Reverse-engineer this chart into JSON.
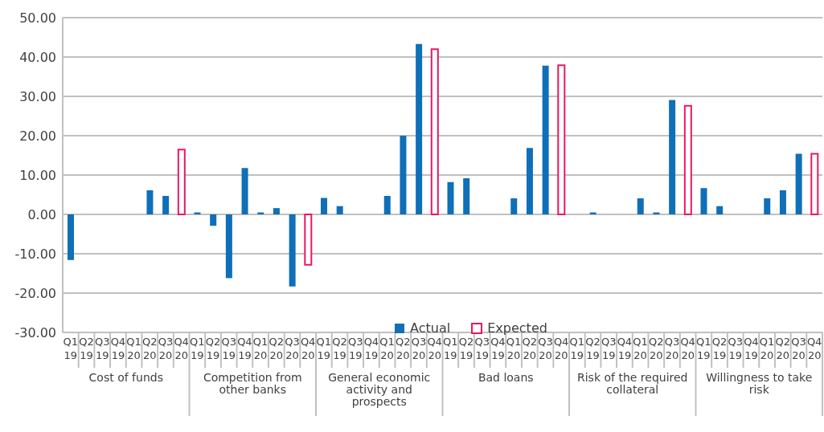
{
  "chart_data": {
    "type": "bar",
    "categories": [
      "Q1 19",
      "Q2 19",
      "Q3 19",
      "Q4 19",
      "Q1 20",
      "Q2 20",
      "Q3 20",
      "Q4 20",
      "Q1 19",
      "Q2 19",
      "Q3 19",
      "Q4 19",
      "Q1 20",
      "Q2 20",
      "Q3 20",
      "Q4 20",
      "Q1 19",
      "Q2 19",
      "Q3 19",
      "Q4 19",
      "Q1 20",
      "Q2 20",
      "Q3 20",
      "Q4 20",
      "Q1 19",
      "Q2 19",
      "Q3 19",
      "Q4 19",
      "Q1 20",
      "Q2 20",
      "Q3 20",
      "Q4 20",
      "Q1 19",
      "Q2 19",
      "Q3 19",
      "Q4 19",
      "Q1 20",
      "Q2 20",
      "Q3 20",
      "Q4 20",
      "Q1 19",
      "Q2 19",
      "Q3 19",
      "Q4 19",
      "Q1 20",
      "Q2 20",
      "Q3 20",
      "Q4 20"
    ],
    "series": [
      {
        "name": "Actual",
        "color": "#0f6fb8",
        "values": [
          -11.6,
          0,
          0,
          0,
          0,
          6.1,
          4.7,
          null,
          0.5,
          -2.9,
          -16.2,
          11.8,
          0.5,
          1.6,
          -18.3,
          null,
          4.2,
          2.1,
          0,
          0,
          4.7,
          20.0,
          43.3,
          null,
          8.2,
          9.2,
          0,
          0,
          4.1,
          16.9,
          37.8,
          null,
          0,
          0.5,
          0,
          0,
          4.1,
          0.5,
          29.1,
          null,
          6.7,
          2.1,
          0,
          0,
          4.1,
          6.1,
          15.4,
          null
        ]
      },
      {
        "name": "Expected",
        "color": "#e8185f",
        "values": [
          null,
          null,
          null,
          null,
          null,
          null,
          null,
          16.5,
          null,
          null,
          null,
          null,
          null,
          null,
          null,
          -12.8,
          null,
          null,
          null,
          null,
          null,
          null,
          null,
          42.0,
          null,
          null,
          null,
          null,
          null,
          null,
          null,
          37.9,
          null,
          null,
          null,
          null,
          null,
          null,
          null,
          27.6,
          null,
          null,
          null,
          null,
          null,
          null,
          null,
          15.4
        ]
      }
    ],
    "ylim": [
      -30,
      50
    ],
    "yticks": [
      {
        "value": -30,
        "label": "-30.00"
      },
      {
        "value": -20,
        "label": "-20.00"
      },
      {
        "value": -10,
        "label": "-10.00"
      },
      {
        "value": 0,
        "label": "0.00"
      },
      {
        "value": 10,
        "label": "10.00"
      },
      {
        "value": 20,
        "label": "20.00"
      },
      {
        "value": 30,
        "label": "30.00"
      },
      {
        "value": 40,
        "label": "40.00"
      },
      {
        "value": 50,
        "label": "50.00"
      }
    ],
    "grid": "y",
    "legend": "bottom",
    "annotations": [
      "Cost of funds",
      "Competition from other banks",
      "General economic activity and prospects",
      "Bad loans",
      "Risk of the required collateral",
      "Willingness to take risk"
    ]
  }
}
